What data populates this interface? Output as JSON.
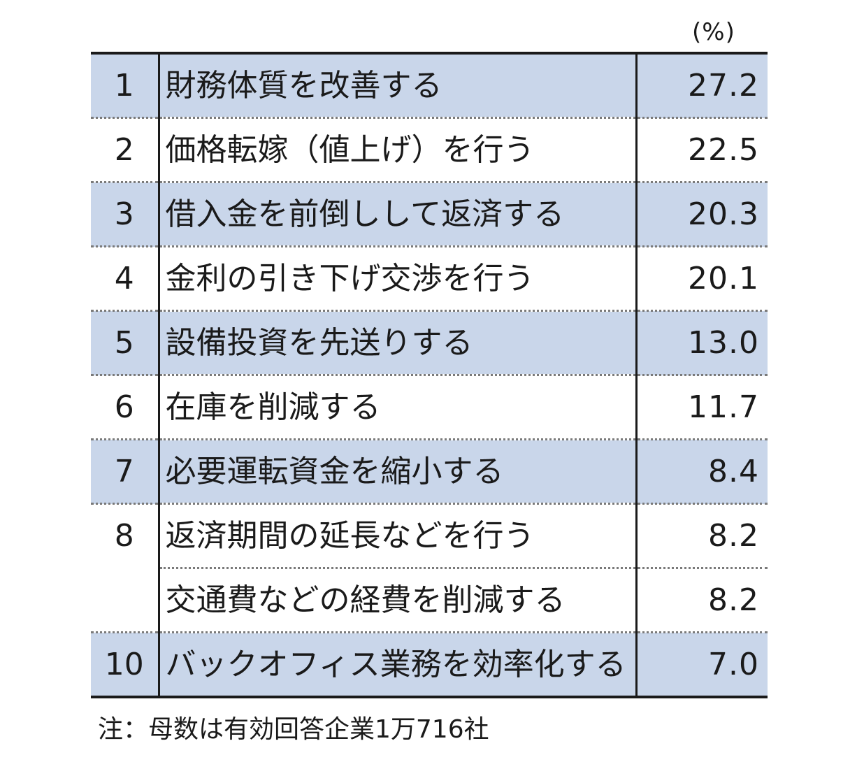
{
  "chart_data": {
    "type": "table",
    "unit_label": "(%)",
    "rows": [
      {
        "rank": "1",
        "item": "財務体質を改善する",
        "value": "27.2",
        "shaded": true
      },
      {
        "rank": "2",
        "item": "価格転嫁（値上げ）を行う",
        "value": "22.5",
        "shaded": false
      },
      {
        "rank": "3",
        "item": "借入金を前倒しして返済する",
        "value": "20.3",
        "shaded": true
      },
      {
        "rank": "4",
        "item": "金利の引き下げ交渉を行う",
        "value": "20.1",
        "shaded": false
      },
      {
        "rank": "5",
        "item": "設備投資を先送りする",
        "value": "13.0",
        "shaded": true
      },
      {
        "rank": "6",
        "item": "在庫を削減する",
        "value": "11.7",
        "shaded": false
      },
      {
        "rank": "7",
        "item": "必要運転資金を縮小する",
        "value": "8.4",
        "shaded": true
      },
      {
        "rank": "8",
        "item": "返済期間の延長などを行う",
        "value": "8.2",
        "shaded": false
      },
      {
        "rank": "",
        "item": "交通費などの経費を削減する",
        "value": "8.2",
        "shaded": false
      },
      {
        "rank": "10",
        "item": "バックオフィス業務を効率化する",
        "value": "7.0",
        "shaded": true
      }
    ],
    "note": "注：母数は有効回答企業1万716社",
    "colors": {
      "shaded_row": "#c9d6ea",
      "text": "#1a1a1a"
    }
  }
}
